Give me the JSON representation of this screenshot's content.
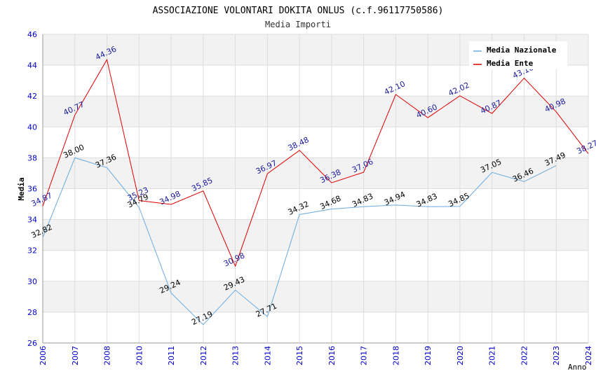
{
  "chart_data": {
    "type": "line",
    "title": "ASSOCIAZIONE VOLONTARI DOKITA ONLUS (c.f.96117750586)",
    "subtitle": "Media Importi",
    "xlabel": "Anno",
    "ylabel": "Media",
    "ylim": [
      26,
      46
    ],
    "ytick_step": 2,
    "x": [
      2006,
      2007,
      2008,
      2010,
      2011,
      2012,
      2013,
      2014,
      2015,
      2016,
      2017,
      2018,
      2019,
      2020,
      2021,
      2022,
      2023,
      2024
    ],
    "grid": true,
    "legend_position": "top-right",
    "series": [
      {
        "name": "Media Nazionale",
        "color": "#6aaae0",
        "label_color": "#000000",
        "values": [
          32.82,
          38.0,
          37.36,
          34.79,
          29.24,
          27.19,
          29.43,
          27.71,
          34.32,
          34.68,
          34.83,
          34.94,
          34.83,
          34.85,
          37.05,
          36.46,
          37.49,
          null
        ],
        "labels": [
          "32.82",
          "38.00",
          "37.36",
          "34.79",
          "29.24",
          "27.19",
          "29.43",
          "27.71",
          "34.32",
          "34.68",
          "34.83",
          "34.94",
          "34.83",
          "34.85",
          "37.05",
          "36.46",
          "37.49",
          null
        ]
      },
      {
        "name": "Media Ente",
        "color": "#dd0000",
        "label_color": "#1a1aa0",
        "values": [
          34.87,
          40.77,
          44.36,
          35.23,
          34.98,
          35.85,
          30.98,
          36.97,
          38.48,
          36.38,
          37.06,
          42.1,
          40.6,
          42.02,
          40.87,
          43.16,
          40.98,
          38.27
        ],
        "labels": [
          "34.87",
          "40.77",
          "44.36",
          "35.23",
          "34.98",
          "35.85",
          "30.98",
          "36.97",
          "38.48",
          "36.38",
          "37.06",
          "42.10",
          "40.60",
          "42.02",
          "40.87",
          "43.16",
          "40.98",
          "38.27"
        ]
      }
    ],
    "colors": {
      "tick_label": "#0000cc",
      "band": "#f2f2f2",
      "grid": "#dddddd",
      "axis": "#999999"
    }
  }
}
